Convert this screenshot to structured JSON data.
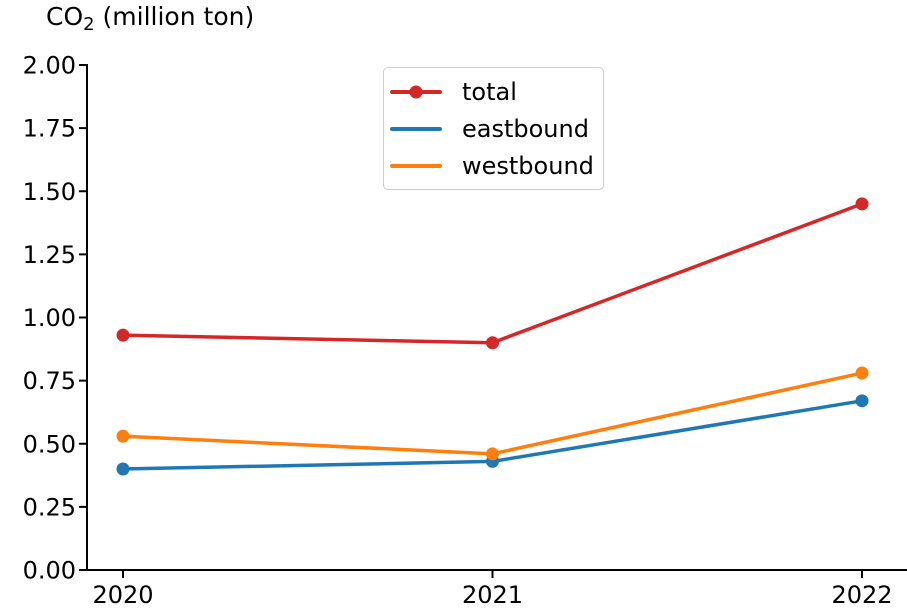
{
  "chart_data": {
    "type": "line",
    "title": {
      "prefix": "CO",
      "subscript": "2",
      "suffix": " (million ton)",
      "full": "CO₂ (million ton)"
    },
    "x": [
      "2020",
      "2021",
      "2022"
    ],
    "ylim": [
      0.0,
      2.0
    ],
    "y_ticks": [
      {
        "value": 2.0,
        "label": "2.00"
      },
      {
        "value": 1.75,
        "label": "1.75"
      },
      {
        "value": 1.5,
        "label": "1.50"
      },
      {
        "value": 1.25,
        "label": "1.25"
      },
      {
        "value": 1.0,
        "label": "1.00"
      },
      {
        "value": 0.75,
        "label": "0.75"
      },
      {
        "value": 0.5,
        "label": "0.50"
      },
      {
        "value": 0.25,
        "label": "0.25"
      },
      {
        "value": 0.0,
        "label": "0.00"
      }
    ],
    "series": [
      {
        "name": "total",
        "color": "#d62728",
        "values": [
          0.93,
          0.9,
          1.45
        ],
        "marker": "circle",
        "legend_shows_marker": true
      },
      {
        "name": "eastbound",
        "color": "#1f77b4",
        "values": [
          0.4,
          0.43,
          0.67
        ],
        "marker": "circle",
        "legend_shows_marker": false
      },
      {
        "name": "westbound",
        "color": "#ff7f0e",
        "values": [
          0.53,
          0.46,
          0.78
        ],
        "marker": "circle",
        "legend_shows_marker": false
      }
    ],
    "legend": {
      "position": "upper center",
      "entries": [
        "total",
        "eastbound",
        "westbound"
      ]
    },
    "grid": false,
    "axis_color": "#000000",
    "background": "#ffffff"
  }
}
